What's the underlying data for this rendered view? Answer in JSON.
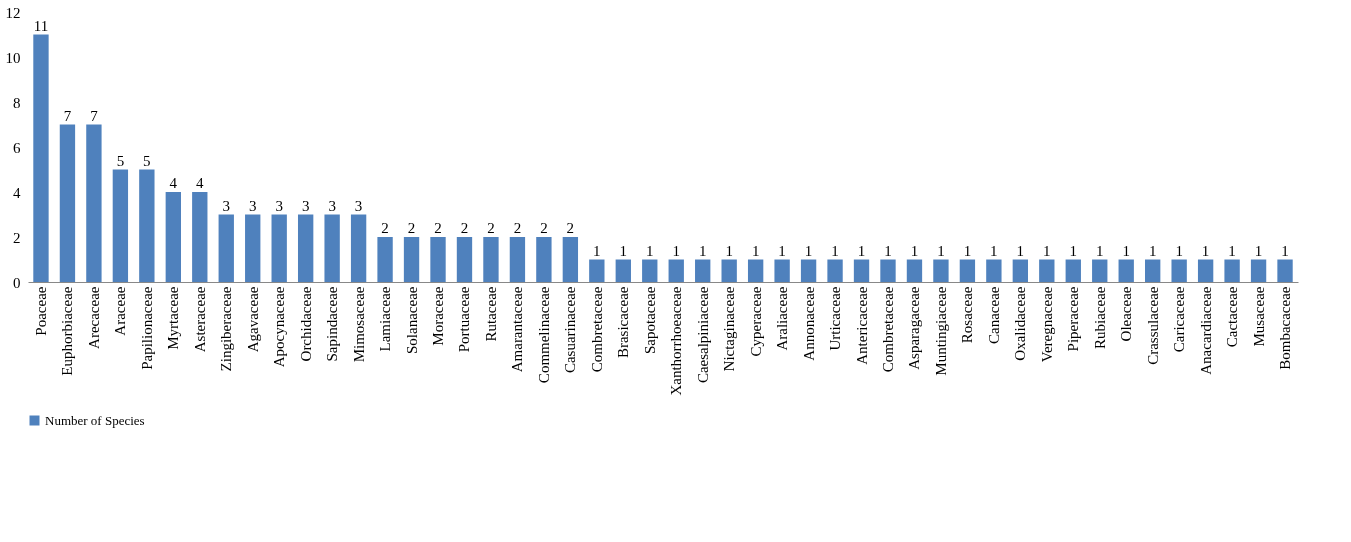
{
  "chart_data": {
    "type": "bar",
    "categories": [
      "Poaceae",
      "Euphorbiaceae",
      "Arecaceae",
      "Araceae",
      "Papilionaceae",
      "Myrtaceae",
      "Asteraceae",
      "Zingiberaceae",
      "Agavaceae",
      "Apocynaceae",
      "Orchidaceae",
      "Sapindaceae",
      "Mimosaceae",
      "Lamiaceae",
      "Solanaceae",
      "Moraceae",
      "Portuaceae",
      "Rutaceae",
      "Amarantaceae",
      "Commelinaceae",
      "Casuarinaceae",
      "Combretaceae",
      "Brasicaceae",
      "Sapotaceae",
      "Xanthorrhoeaceae",
      "Caesalpiniaceae",
      "Nictaginaceae",
      "Cyperaceae",
      "Araliaceae",
      "Annonaceae",
      "Urticaceae",
      "Antericaceae",
      "Combretaceae",
      "Asparagaceae",
      "Muntingiaceae",
      "Rosaceae",
      "Canaceae",
      "Oxalidaceae",
      "Veregnaceae",
      "Piperaceae",
      "Rubiaceae",
      "Oleaceae",
      "Crassulaceae",
      "Caricaceae",
      "Anacardiaceae",
      "Cactaceae",
      "Musaceae",
      "Bombacaceae"
    ],
    "series": [
      {
        "name": "Number of Species",
        "color": "#4f81bd",
        "values": [
          11,
          7,
          7,
          5,
          5,
          4,
          4,
          3,
          3,
          3,
          3,
          3,
          3,
          2,
          2,
          2,
          2,
          2,
          2,
          2,
          2,
          1,
          1,
          1,
          1,
          1,
          1,
          1,
          1,
          1,
          1,
          1,
          1,
          1,
          1,
          1,
          1,
          1,
          1,
          1,
          1,
          1,
          1,
          1,
          1,
          1,
          1,
          1
        ]
      }
    ],
    "ylim": [
      0,
      12
    ],
    "yticks": [
      0,
      2,
      4,
      6,
      8,
      10,
      12
    ],
    "grid": false,
    "legend": "bottom",
    "data_labels": true
  }
}
